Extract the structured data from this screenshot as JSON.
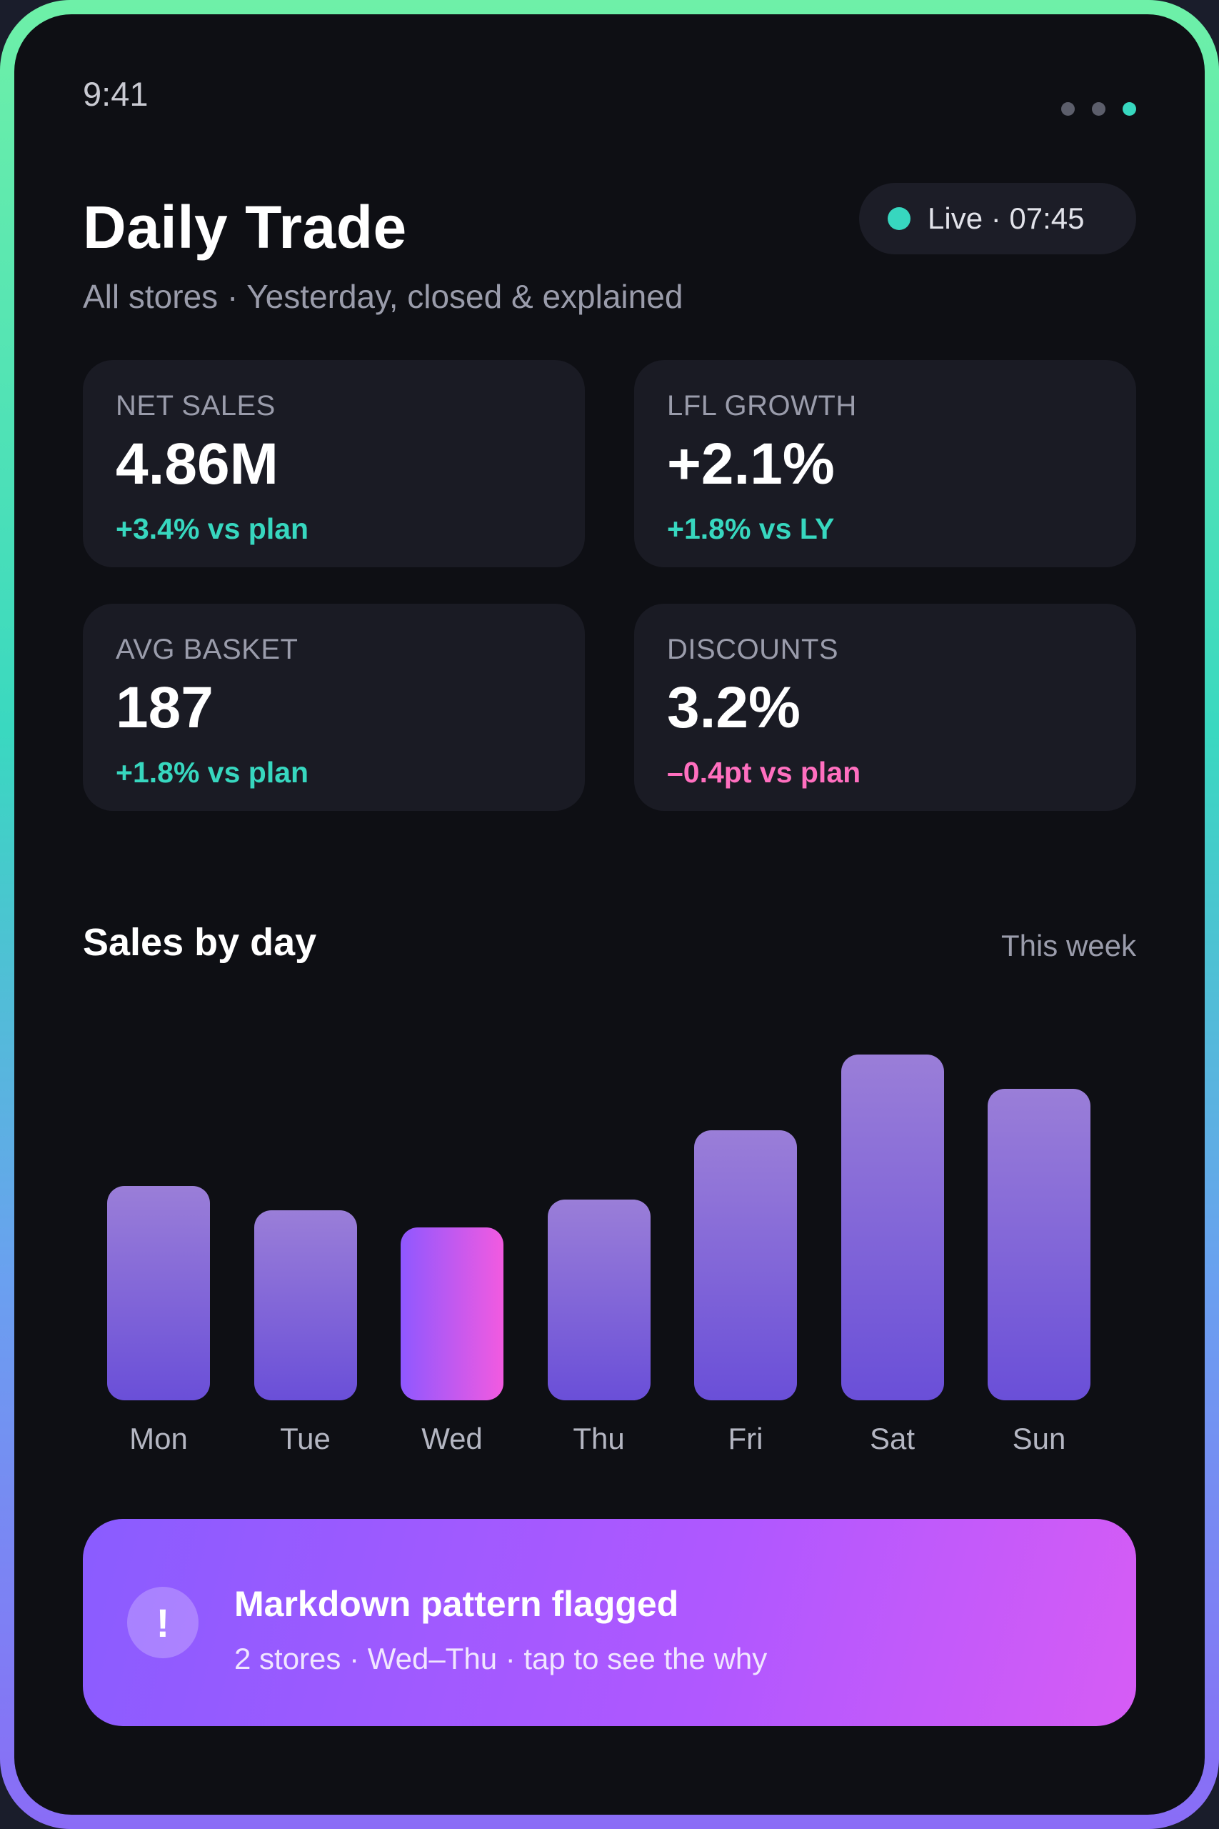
{
  "status_bar": {
    "time": "9:41"
  },
  "header": {
    "title": "Daily Trade",
    "subtitle": "All stores · Yesterday, closed & explained",
    "live_label": "Live · 07:45"
  },
  "kpis": [
    {
      "label": "NET SALES",
      "value": "4.86M",
      "delta": "+3.4% vs plan",
      "trend": "positive"
    },
    {
      "label": "LFL GROWTH",
      "value": "+2.1%",
      "delta": "+1.8% vs LY",
      "trend": "positive"
    },
    {
      "label": "AVG BASKET",
      "value": "187",
      "delta": "+1.8% vs plan",
      "trend": "positive"
    },
    {
      "label": "DISCOUNTS",
      "value": "3.2%",
      "delta": "–0.4pt vs plan",
      "trend": "negative"
    }
  ],
  "sales_section": {
    "title": "Sales by day",
    "period": "This week"
  },
  "chart_data": {
    "type": "bar",
    "categories": [
      "Mon",
      "Tue",
      "Wed",
      "Thu",
      "Fri",
      "Sat",
      "Sun"
    ],
    "values": [
      62,
      55,
      50,
      58,
      78,
      100,
      90
    ],
    "ylim": [
      0,
      100
    ],
    "highlighted_category": "Wed",
    "grid": false,
    "colors": {
      "bar": "#7b61db",
      "highlight_start": "#8f58ff",
      "highlight_end": "#f25ae0"
    }
  },
  "alert": {
    "icon": "exclamation-icon",
    "title": "Markdown pattern flagged",
    "subtitle": "2 stores · Wed–Thu · tap to see the why"
  },
  "colors": {
    "background": "#0e0f14",
    "card": "#1a1b24",
    "accent_teal": "#37d7bf",
    "accent_pink": "#ff6fbf",
    "alert_start": "#8a5cff",
    "alert_end": "#d65cf5"
  }
}
